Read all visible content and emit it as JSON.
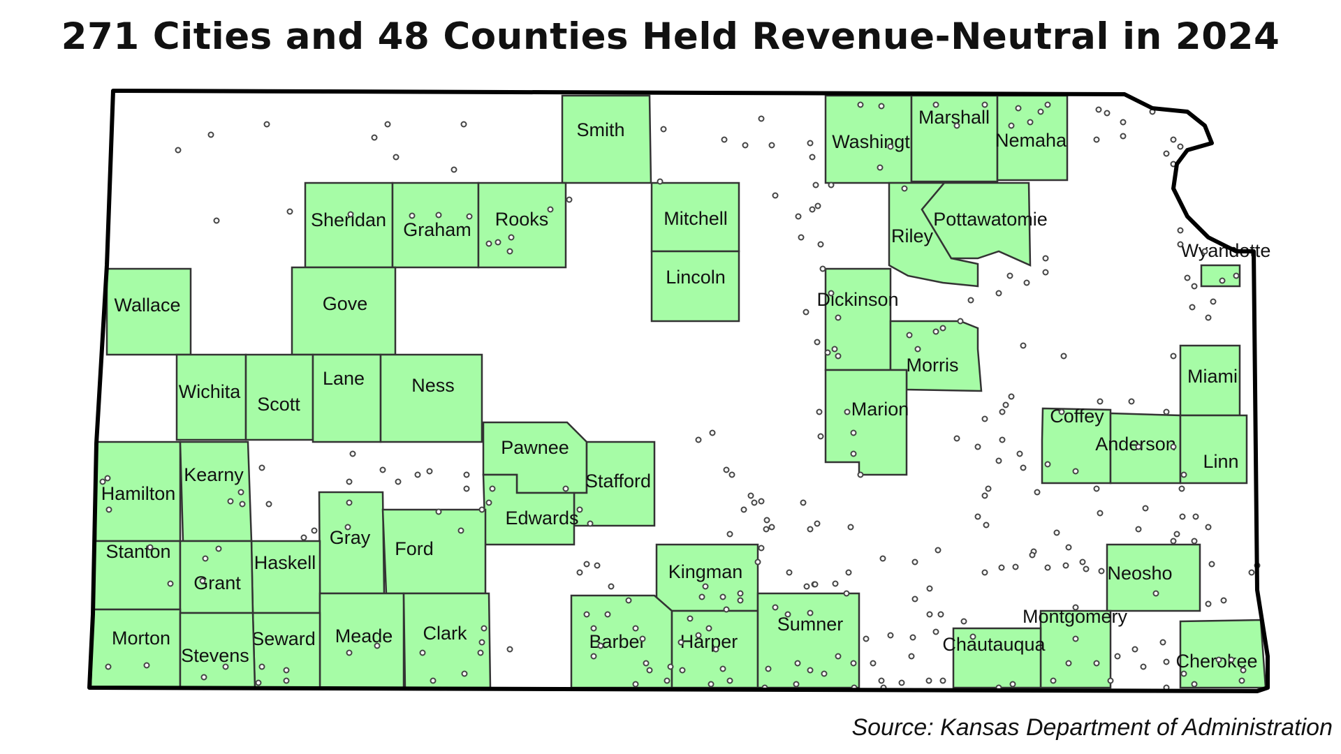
{
  "title": "271 Cities and 48 Counties Held Revenue-Neutral in 2024",
  "source": "Source: Kansas Department of Administration",
  "colors": {
    "revenue_neutral_county": "#a6fca6",
    "border": "#000000",
    "city_marker": "#ffffff"
  },
  "counties": [
    "Smith",
    "Washington",
    "Marshall",
    "Nemaha",
    "Sheridan",
    "Graham",
    "Rooks",
    "Mitchell",
    "Riley",
    "Pottawatomie",
    "Wyandotte",
    "Wallace",
    "Gove",
    "Lincoln",
    "Dickinson",
    "Wichita",
    "Scott",
    "Lane",
    "Ness",
    "Morris",
    "Miami",
    "Marion",
    "Coffey",
    "Anderson",
    "Linn",
    "Pawnee",
    "Hamilton",
    "Kearny",
    "Stafford",
    "Edwards",
    "Gray",
    "Ford",
    "Stanton",
    "Haskell",
    "Grant",
    "Kingman",
    "Neosho",
    "Montgomery",
    "Morton",
    "Meade",
    "Clark",
    "Barber",
    "Harper",
    "Sumner",
    "Seward",
    "Stevens",
    "Chautauqua",
    "Cherokee"
  ],
  "city_marker_name": "city-circle-icon"
}
